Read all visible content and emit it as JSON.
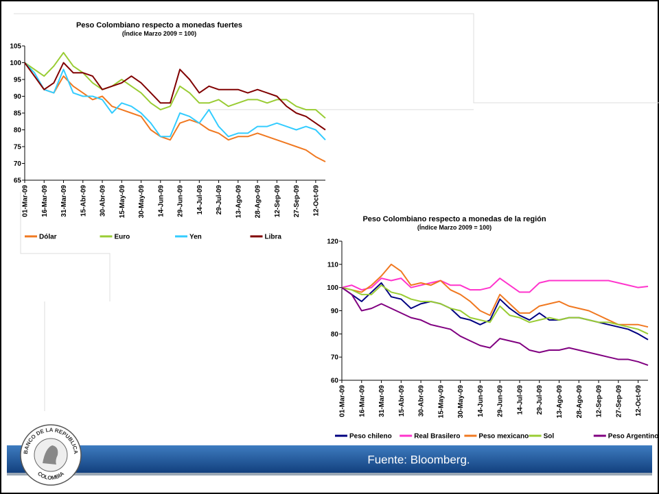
{
  "chart_data": [
    {
      "type": "line",
      "title": "Peso Colombiano respecto a monedas fuertes",
      "subtitle": "(Índice Marzo 2009 = 100)",
      "categories": [
        "01-Mar-09",
        null,
        "16-Mar-09",
        null,
        "31-Mar-09",
        null,
        "15-Abr-09",
        null,
        "30-Abr-09",
        null,
        "15-May-09",
        null,
        "30-May-09",
        null,
        "14-Jun-09",
        null,
        "29-Jun-09",
        null,
        "14-Jul-09",
        null,
        "29-Jul-09",
        null,
        "13-Ago-09",
        null,
        "28-Ago-09",
        null,
        "12-Sep-09",
        null,
        "27-Sep-09",
        null,
        "12-Oct-09",
        null
      ],
      "ylim": [
        65,
        105
      ],
      "yticks": [
        65,
        70,
        75,
        80,
        85,
        90,
        95,
        100,
        105
      ],
      "grid": false,
      "legend": "bottom",
      "series": [
        {
          "name": "Dólar",
          "color": "#f07820",
          "values": [
            100,
            96,
            92,
            91,
            96,
            93,
            91,
            89,
            90,
            87,
            86,
            85,
            84,
            80,
            78,
            77,
            82,
            83,
            82,
            80,
            79,
            77,
            78,
            78,
            79,
            78,
            77,
            76,
            75,
            74,
            72,
            70.5
          ]
        },
        {
          "name": "Euro",
          "color": "#99cc33",
          "values": [
            100,
            98,
            96,
            99,
            103,
            99,
            97,
            94,
            92,
            93,
            95,
            93,
            91,
            88,
            86,
            87,
            93,
            91,
            88,
            88,
            89,
            87,
            88,
            89,
            89,
            88,
            89,
            89,
            87,
            86,
            86,
            83.5
          ]
        },
        {
          "name": "Yen",
          "color": "#33ccff",
          "values": [
            100,
            97,
            92,
            91,
            98,
            91,
            90,
            90,
            89,
            85,
            88,
            87,
            85,
            82,
            78,
            78,
            85,
            84,
            82,
            86,
            81,
            78,
            79,
            79,
            81,
            81,
            82,
            81,
            80,
            81,
            80,
            77
          ]
        },
        {
          "name": "Libra",
          "color": "#800000",
          "values": [
            100,
            96,
            92,
            94,
            100,
            97,
            97,
            96,
            92,
            93,
            94,
            96,
            94,
            91,
            88,
            88,
            98,
            95,
            91,
            93,
            92,
            92,
            92,
            91,
            92,
            91,
            90,
            87,
            85,
            84,
            82,
            80
          ]
        }
      ]
    },
    {
      "type": "line",
      "title": "Peso Colombiano respecto a monedas de la región",
      "subtitle": "(Índice Marzo 2009 = 100)",
      "categories": [
        "01-Mar-09",
        null,
        "16-Mar-09",
        null,
        "31-Mar-09",
        null,
        "15-Abr-09",
        null,
        "30-Abr-09",
        null,
        "15-May-09",
        null,
        "30-May-09",
        null,
        "14-Jun-09",
        null,
        "29-Jun-09",
        null,
        "14-Jul-09",
        null,
        "29-Jul-09",
        null,
        "13-Ago-09",
        null,
        "28-Ago-09",
        null,
        "12-Sep-09",
        null,
        "27-Sep-09",
        null,
        "12-Oct-09",
        null
      ],
      "ylim": [
        60,
        120
      ],
      "yticks": [
        60,
        70,
        80,
        90,
        100,
        110,
        120
      ],
      "grid": false,
      "legend": "bottom",
      "series": [
        {
          "name": "Peso chileno",
          "color": "#000080",
          "values": [
            100,
            97,
            94,
            98,
            102,
            96,
            95,
            91,
            93,
            94,
            93,
            91,
            87,
            86,
            84,
            86,
            95,
            91,
            88,
            86,
            89,
            86,
            86,
            87,
            87,
            86,
            85,
            84,
            83,
            82,
            80,
            77.5
          ]
        },
        {
          "name": "Real Brasilero",
          "color": "#ff33cc",
          "values": [
            100,
            101,
            99,
            100,
            104,
            103,
            104,
            100,
            101,
            102,
            103,
            101,
            101,
            99,
            99,
            100,
            104,
            101,
            98,
            98,
            102,
            103,
            103,
            103,
            103,
            103,
            103,
            103,
            102,
            101,
            100,
            100.5
          ]
        },
        {
          "name": "Peso mexicano",
          "color": "#f07820",
          "values": [
            100,
            99,
            98,
            101,
            105,
            110,
            107,
            101,
            102,
            101,
            103,
            99,
            97,
            94,
            90,
            88,
            97,
            93,
            89,
            89,
            92,
            93,
            94,
            92,
            91,
            90,
            88,
            86,
            84,
            84,
            84,
            83
          ]
        },
        {
          "name": "Sol",
          "color": "#99cc33",
          "values": [
            100,
            99,
            97,
            97,
            101,
            98,
            97,
            95,
            94,
            94,
            93,
            91,
            90,
            87,
            86,
            85,
            92,
            88,
            87,
            85,
            86,
            87,
            86,
            87,
            87,
            86,
            85,
            85,
            84,
            83,
            82,
            80
          ]
        },
        {
          "name": "Peso Argentino",
          "color": "#800080",
          "values": [
            100,
            97,
            90,
            91,
            93,
            91,
            89,
            87,
            86,
            84,
            83,
            82,
            79,
            77,
            75,
            74,
            78,
            77,
            76,
            73,
            72,
            73,
            73,
            74,
            73,
            72,
            71,
            70,
            69,
            69,
            68,
            66.5
          ]
        }
      ]
    }
  ],
  "footer": "Fuente: Bloomberg.",
  "logo_text": [
    "BANCO DE LA REPUBLICA",
    "COLOMBIA"
  ]
}
